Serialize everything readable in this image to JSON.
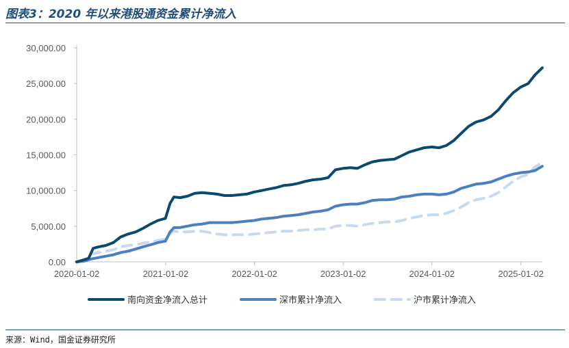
{
  "header": {
    "title": "图表3：2020 年以来港股通资金累计净流入"
  },
  "footer": {
    "source": "来源：Wind，国金证券研究所"
  },
  "colors": {
    "rule": "#1f4e79",
    "axis": "#bfbfbf",
    "tick_text": "#595959"
  },
  "chart_data": {
    "type": "line",
    "title": "",
    "xlabel": "",
    "ylabel": "",
    "x_ticks": [
      "2020-01-02",
      "2021-01-02",
      "2022-01-02",
      "2023-01-02",
      "2024-01-02",
      "2025-01-02"
    ],
    "y_ticks": [
      "0.00",
      "5,000.00",
      "10,000.00",
      "15,000.00",
      "20,000.00",
      "25,000.00",
      "30,000.00"
    ],
    "ylim": [
      0,
      30000
    ],
    "xlim": [
      "2020-01-02",
      "2025-03-31"
    ],
    "grid": false,
    "legend_position": "bottom",
    "series": [
      {
        "name": "南向资金净流入总计",
        "color": "#0b4a6e",
        "style": "solid",
        "points": [
          [
            "2020-01-02",
            0
          ],
          [
            "2020-02-01",
            300
          ],
          [
            "2020-02-20",
            500
          ],
          [
            "2020-03-10",
            1900
          ],
          [
            "2020-04-01",
            2100
          ],
          [
            "2020-05-01",
            2300
          ],
          [
            "2020-06-01",
            2700
          ],
          [
            "2020-07-01",
            3500
          ],
          [
            "2020-08-01",
            3900
          ],
          [
            "2020-09-01",
            4200
          ],
          [
            "2020-10-01",
            4700
          ],
          [
            "2020-11-01",
            5300
          ],
          [
            "2020-12-01",
            5800
          ],
          [
            "2021-01-01",
            6100
          ],
          [
            "2021-01-20",
            8200
          ],
          [
            "2021-02-05",
            9100
          ],
          [
            "2021-03-01",
            9000
          ],
          [
            "2021-04-01",
            9200
          ],
          [
            "2021-05-01",
            9600
          ],
          [
            "2021-06-01",
            9700
          ],
          [
            "2021-07-01",
            9600
          ],
          [
            "2021-08-01",
            9500
          ],
          [
            "2021-09-01",
            9300
          ],
          [
            "2021-10-01",
            9300
          ],
          [
            "2021-11-01",
            9400
          ],
          [
            "2021-12-01",
            9500
          ],
          [
            "2022-01-01",
            9800
          ],
          [
            "2022-02-01",
            10000
          ],
          [
            "2022-03-01",
            10200
          ],
          [
            "2022-04-01",
            10400
          ],
          [
            "2022-05-01",
            10700
          ],
          [
            "2022-06-01",
            10800
          ],
          [
            "2022-07-01",
            11000
          ],
          [
            "2022-08-01",
            11300
          ],
          [
            "2022-09-01",
            11500
          ],
          [
            "2022-10-01",
            11600
          ],
          [
            "2022-11-01",
            11800
          ],
          [
            "2022-12-01",
            12900
          ],
          [
            "2023-01-01",
            13100
          ],
          [
            "2023-02-01",
            13200
          ],
          [
            "2023-03-01",
            13100
          ],
          [
            "2023-04-01",
            13600
          ],
          [
            "2023-05-01",
            14000
          ],
          [
            "2023-06-01",
            14200
          ],
          [
            "2023-07-01",
            14300
          ],
          [
            "2023-08-01",
            14400
          ],
          [
            "2023-09-01",
            14900
          ],
          [
            "2023-10-01",
            15400
          ],
          [
            "2023-11-01",
            15700
          ],
          [
            "2023-12-01",
            16000
          ],
          [
            "2024-01-01",
            16100
          ],
          [
            "2024-02-01",
            16000
          ],
          [
            "2024-03-01",
            16300
          ],
          [
            "2024-04-01",
            17000
          ],
          [
            "2024-05-01",
            18000
          ],
          [
            "2024-06-01",
            19000
          ],
          [
            "2024-07-01",
            19600
          ],
          [
            "2024-08-01",
            19900
          ],
          [
            "2024-09-01",
            20400
          ],
          [
            "2024-10-01",
            21300
          ],
          [
            "2024-11-01",
            22600
          ],
          [
            "2024-12-01",
            23700
          ],
          [
            "2025-01-01",
            24500
          ],
          [
            "2025-02-01",
            25000
          ],
          [
            "2025-03-01",
            26200
          ],
          [
            "2025-03-31",
            27200
          ]
        ]
      },
      {
        "name": "深市累计净流入",
        "color": "#4a7fc0",
        "style": "solid",
        "points": [
          [
            "2020-01-02",
            0
          ],
          [
            "2020-02-01",
            100
          ],
          [
            "2020-03-01",
            400
          ],
          [
            "2020-04-01",
            600
          ],
          [
            "2020-05-01",
            800
          ],
          [
            "2020-06-01",
            1000
          ],
          [
            "2020-07-01",
            1300
          ],
          [
            "2020-08-01",
            1500
          ],
          [
            "2020-09-01",
            1800
          ],
          [
            "2020-10-01",
            2100
          ],
          [
            "2020-11-01",
            2400
          ],
          [
            "2020-12-01",
            2700
          ],
          [
            "2021-01-01",
            2900
          ],
          [
            "2021-01-20",
            4200
          ],
          [
            "2021-02-05",
            4800
          ],
          [
            "2021-03-01",
            4800
          ],
          [
            "2021-04-01",
            5000
          ],
          [
            "2021-05-01",
            5200
          ],
          [
            "2021-06-01",
            5300
          ],
          [
            "2021-07-01",
            5500
          ],
          [
            "2021-08-01",
            5500
          ],
          [
            "2021-09-01",
            5500
          ],
          [
            "2021-10-01",
            5500
          ],
          [
            "2021-11-01",
            5600
          ],
          [
            "2021-12-01",
            5700
          ],
          [
            "2022-01-01",
            5800
          ],
          [
            "2022-02-01",
            6000
          ],
          [
            "2022-03-01",
            6100
          ],
          [
            "2022-04-01",
            6200
          ],
          [
            "2022-05-01",
            6400
          ],
          [
            "2022-06-01",
            6500
          ],
          [
            "2022-07-01",
            6600
          ],
          [
            "2022-08-01",
            6800
          ],
          [
            "2022-09-01",
            7000
          ],
          [
            "2022-10-01",
            7100
          ],
          [
            "2022-11-01",
            7300
          ],
          [
            "2022-12-01",
            7800
          ],
          [
            "2023-01-01",
            8000
          ],
          [
            "2023-02-01",
            8100
          ],
          [
            "2023-03-01",
            8100
          ],
          [
            "2023-04-01",
            8300
          ],
          [
            "2023-05-01",
            8600
          ],
          [
            "2023-06-01",
            8700
          ],
          [
            "2023-07-01",
            8700
          ],
          [
            "2023-08-01",
            8800
          ],
          [
            "2023-09-01",
            9100
          ],
          [
            "2023-10-01",
            9200
          ],
          [
            "2023-11-01",
            9400
          ],
          [
            "2023-12-01",
            9500
          ],
          [
            "2024-01-01",
            9500
          ],
          [
            "2024-02-01",
            9400
          ],
          [
            "2024-03-01",
            9500
          ],
          [
            "2024-04-01",
            9800
          ],
          [
            "2024-05-01",
            10300
          ],
          [
            "2024-06-01",
            10600
          ],
          [
            "2024-07-01",
            10900
          ],
          [
            "2024-08-01",
            11000
          ],
          [
            "2024-09-01",
            11200
          ],
          [
            "2024-10-01",
            11600
          ],
          [
            "2024-11-01",
            12000
          ],
          [
            "2024-12-01",
            12300
          ],
          [
            "2025-01-01",
            12500
          ],
          [
            "2025-02-01",
            12600
          ],
          [
            "2025-03-01",
            12800
          ],
          [
            "2025-03-31",
            13400
          ]
        ]
      },
      {
        "name": "沪市累计净流入",
        "color": "#c5daef",
        "style": "dashed",
        "points": [
          [
            "2020-01-02",
            0
          ],
          [
            "2020-02-01",
            200
          ],
          [
            "2020-03-01",
            1100
          ],
          [
            "2020-04-01",
            1300
          ],
          [
            "2020-05-01",
            1500
          ],
          [
            "2020-06-01",
            1700
          ],
          [
            "2020-07-01",
            2100
          ],
          [
            "2020-08-01",
            2300
          ],
          [
            "2020-09-01",
            2400
          ],
          [
            "2020-10-01",
            2600
          ],
          [
            "2020-11-01",
            2800
          ],
          [
            "2020-12-01",
            3000
          ],
          [
            "2021-01-01",
            3200
          ],
          [
            "2021-01-20",
            4000
          ],
          [
            "2021-02-05",
            4300
          ],
          [
            "2021-03-01",
            4200
          ],
          [
            "2021-04-01",
            4200
          ],
          [
            "2021-05-01",
            4300
          ],
          [
            "2021-06-01",
            4300
          ],
          [
            "2021-07-01",
            4100
          ],
          [
            "2021-08-01",
            3900
          ],
          [
            "2021-09-01",
            3800
          ],
          [
            "2021-10-01",
            3800
          ],
          [
            "2021-11-01",
            3800
          ],
          [
            "2021-12-01",
            3800
          ],
          [
            "2022-01-01",
            3900
          ],
          [
            "2022-02-01",
            4000
          ],
          [
            "2022-03-01",
            4100
          ],
          [
            "2022-04-01",
            4200
          ],
          [
            "2022-05-01",
            4300
          ],
          [
            "2022-06-01",
            4300
          ],
          [
            "2022-07-01",
            4400
          ],
          [
            "2022-08-01",
            4500
          ],
          [
            "2022-09-01",
            4500
          ],
          [
            "2022-10-01",
            4600
          ],
          [
            "2022-11-01",
            4600
          ],
          [
            "2022-12-01",
            5000
          ],
          [
            "2023-01-01",
            5100
          ],
          [
            "2023-02-01",
            5100
          ],
          [
            "2023-03-01",
            5000
          ],
          [
            "2023-04-01",
            5200
          ],
          [
            "2023-05-01",
            5400
          ],
          [
            "2023-06-01",
            5500
          ],
          [
            "2023-07-01",
            5600
          ],
          [
            "2023-08-01",
            5600
          ],
          [
            "2023-09-01",
            5800
          ],
          [
            "2023-10-01",
            6100
          ],
          [
            "2023-11-01",
            6300
          ],
          [
            "2023-12-01",
            6500
          ],
          [
            "2024-01-01",
            6600
          ],
          [
            "2024-02-01",
            6600
          ],
          [
            "2024-03-01",
            6800
          ],
          [
            "2024-04-01",
            7200
          ],
          [
            "2024-05-01",
            7700
          ],
          [
            "2024-06-01",
            8300
          ],
          [
            "2024-07-01",
            8700
          ],
          [
            "2024-08-01",
            8900
          ],
          [
            "2024-09-01",
            9200
          ],
          [
            "2024-10-01",
            9700
          ],
          [
            "2024-11-01",
            10500
          ],
          [
            "2024-12-01",
            11300
          ],
          [
            "2025-01-01",
            11900
          ],
          [
            "2025-02-01",
            12300
          ],
          [
            "2025-03-01",
            13300
          ],
          [
            "2025-03-31",
            13900
          ]
        ]
      }
    ]
  }
}
